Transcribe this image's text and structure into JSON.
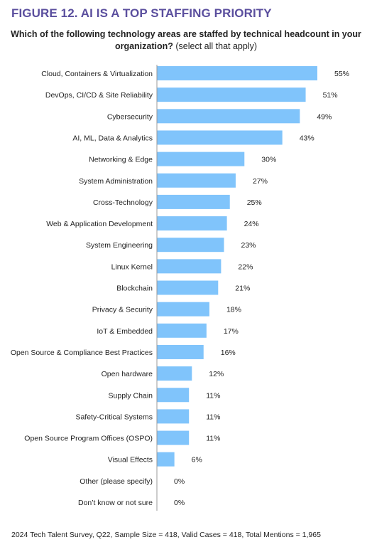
{
  "figure": {
    "title": "FIGURE 12. AI IS A TOP STAFFING PRIORITY",
    "question_main": "Which of the following technology areas are staffed by technical headcount in your organization?",
    "question_note": "(select all that apply)",
    "footnote": "2024 Tech Talent Survey, Q22, Sample Size = 418, Valid Cases = 418, Total Mentions = 1,965",
    "colors": {
      "title": "#5b4f9e",
      "bar": "#80c4fb",
      "axis": "#999999"
    }
  },
  "chart_data": {
    "type": "bar",
    "orientation": "horizontal",
    "categories": [
      "Cloud, Containers & Virtualization",
      "DevOps, CI/CD & Site Reliability",
      "Cybersecurity",
      "AI, ML, Data & Analytics",
      "Networking & Edge",
      "System Administration",
      "Cross-Technology",
      "Web & Application Development",
      "System Engineering",
      "Linux Kernel",
      "Blockchain",
      "Privacy & Security",
      "IoT & Embedded",
      "Open Source & Compliance Best Practices",
      "Open hardware",
      "Supply Chain",
      "Safety-Critical Systems",
      "Open Source Program Offices (OSPO)",
      "Visual Effects",
      "Other (please specify)",
      "Don’t know or not sure"
    ],
    "values": [
      55,
      51,
      49,
      43,
      30,
      27,
      25,
      24,
      23,
      22,
      21,
      18,
      17,
      16,
      12,
      11,
      11,
      11,
      6,
      0,
      0
    ],
    "value_labels": [
      "55%",
      "51%",
      "49%",
      "43%",
      "30%",
      "27%",
      "25%",
      "24%",
      "23%",
      "22%",
      "21%",
      "18%",
      "17%",
      "16%",
      "12%",
      "11%",
      "11%",
      "11%",
      "6%",
      "0%",
      "0%"
    ],
    "unit": "%",
    "title": "FIGURE 12. AI IS A TOP STAFFING PRIORITY",
    "xlabel": "",
    "ylabel": "",
    "xlim": [
      0,
      55
    ],
    "grid": false,
    "legend": "none"
  }
}
